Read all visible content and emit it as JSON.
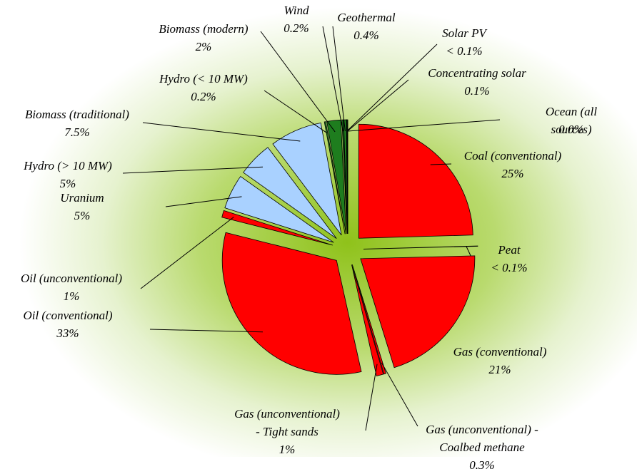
{
  "chart_data": {
    "type": "pie",
    "categories": [
      "Coal (conventional)",
      "Peat",
      "Gas (conventional)",
      "Gas (unconventional) -\nCoalbed methane",
      "Gas (unconventional)\n- Tight sands",
      "Oil (conventional)",
      "Oil (unconventional)",
      "Uranium",
      "Hydro (> 10 MW)",
      "Biomass (traditional)",
      "Hydro (< 10 MW)",
      "Biomass (modern)",
      "Wind",
      "Geothermal",
      "Solar PV",
      "Concentrating solar",
      "Ocean (all sources)"
    ],
    "values": [
      25,
      0.05,
      21,
      0.3,
      1,
      33,
      1,
      5,
      5,
      7.5,
      0.2,
      2,
      0.2,
      0.4,
      0.05,
      0.1,
      0
    ],
    "value_labels": [
      "25%",
      "< 0.1%",
      "21%",
      "0.3%",
      "1%",
      "33%",
      "1%",
      "5%",
      "5%",
      "7.5%",
      "0.2%",
      "2%",
      "0.2%",
      "0.4%",
      "< 0.1%",
      "0.1%",
      "0.0%"
    ],
    "colors": [
      "#ff0000",
      "#ff0000",
      "#ff0000",
      "#ff0000",
      "#ff0000",
      "#ff0000",
      "#ff0000",
      "#a9d1ff",
      "#a9d1ff",
      "#a9d1ff",
      "#1e7d1e",
      "#1e7d1e",
      "#1e7d1e",
      "#1e7d1e",
      "#1e7d1e",
      "#1e7d1e",
      "#1e7d1e"
    ]
  }
}
